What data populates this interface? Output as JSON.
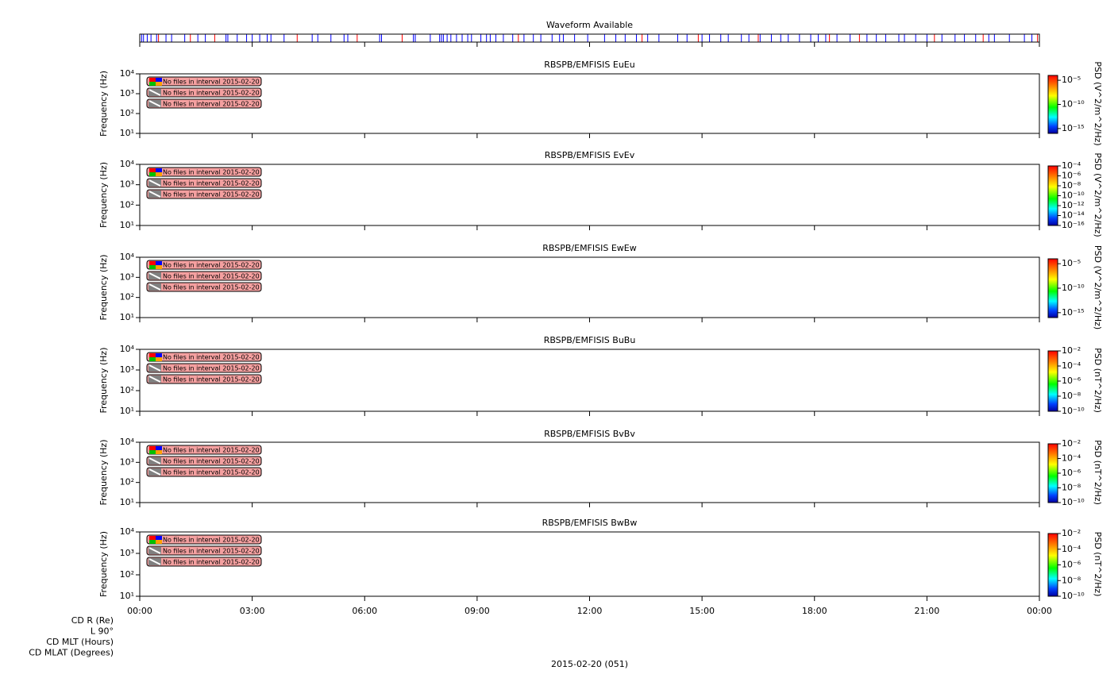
{
  "time_axis": {
    "xlim": [
      0,
      24
    ],
    "xticks": [
      {
        "value": 0,
        "label": "00:00"
      },
      {
        "value": 3,
        "label": "03:00"
      },
      {
        "value": 6,
        "label": "06:00"
      },
      {
        "value": 9,
        "label": "09:00"
      },
      {
        "value": 12,
        "label": "12:00"
      },
      {
        "value": 15,
        "label": "15:00"
      },
      {
        "value": 18,
        "label": "18:00"
      },
      {
        "value": 21,
        "label": "21:00"
      },
      {
        "value": 24,
        "label": "00:00"
      }
    ],
    "date_label": "2015-02-20 (051)",
    "ephemeris_labels": [
      "CD R (Re)",
      "L 90°",
      "CD MLT (Hours)",
      "CD MLAT (Degrees)"
    ]
  },
  "chart_data": [
    {
      "type": "timeline",
      "title": "Waveform Available",
      "xlim": [
        0,
        24
      ],
      "series": [
        {
          "color": "#0000ff",
          "x": [
            0.0,
            0.05,
            0.1,
            0.2,
            0.3,
            0.45,
            0.7,
            0.85,
            1.2,
            1.55,
            1.75,
            2.3,
            2.35,
            2.6,
            2.85,
            3.0,
            3.2,
            3.4,
            3.5,
            3.85,
            4.6,
            4.75,
            5.1,
            5.45,
            5.55,
            6.4,
            6.45,
            7.3,
            7.35,
            7.75,
            8.0,
            8.05,
            8.1,
            8.2,
            8.3,
            8.45,
            8.6,
            8.75,
            8.85,
            9.1,
            9.25,
            9.35,
            9.5,
            9.7,
            9.95,
            10.25,
            10.5,
            10.7,
            11.0,
            11.2,
            11.3,
            11.6,
            11.95,
            12.4,
            12.7,
            12.95,
            13.25,
            13.55,
            13.85,
            14.35,
            14.6,
            15.0,
            15.2,
            15.5,
            15.7,
            16.05,
            16.25,
            16.55,
            16.85,
            17.1,
            17.3,
            17.6,
            17.9,
            18.1,
            18.3,
            18.6,
            18.95,
            19.4,
            19.65,
            19.9,
            20.25,
            20.4,
            20.7,
            21.0,
            21.4,
            21.75,
            22.0,
            22.3,
            22.65,
            22.8,
            23.2,
            23.6,
            23.8
          ]
        },
        {
          "color": "#ff0000",
          "x": [
            0.5,
            1.35,
            2.0,
            4.2,
            5.8,
            7.0,
            10.1,
            13.4,
            14.9,
            16.5,
            18.4,
            19.2,
            21.2,
            22.5,
            23.95
          ]
        }
      ]
    },
    {
      "type": "spectrogram",
      "title": "RBSPB/EMFISIS  EuEu",
      "ylabel": "Frequency (Hz)",
      "ylog": true,
      "ylim": [
        10,
        10000
      ],
      "yticks": [
        {
          "value": 10,
          "label": "10¹"
        },
        {
          "value": 100,
          "label": "10²"
        },
        {
          "value": 1000,
          "label": "10³"
        },
        {
          "value": 10000,
          "label": "10⁴"
        }
      ],
      "annotations": [
        "No files in interval 2015-02-20",
        "No files in interval 2015-02-20",
        "No files in interval 2015-02-20"
      ],
      "zlog": true,
      "zlim": [
        1e-16,
        0.0001
      ],
      "zlabel": "PSD (V^2/m^2/Hz)",
      "zticks": [
        {
          "value": 1e-05,
          "label": "10⁻⁵"
        },
        {
          "value": 1e-10,
          "label": "10⁻¹⁰"
        },
        {
          "value": 1e-15,
          "label": "10⁻¹⁵"
        }
      ]
    },
    {
      "type": "spectrogram",
      "title": "RBSPB/EMFISIS  EvEv",
      "ylabel": "Frequency (Hz)",
      "ylog": true,
      "ylim": [
        10,
        10000
      ],
      "yticks": [
        {
          "value": 10,
          "label": "10¹"
        },
        {
          "value": 100,
          "label": "10²"
        },
        {
          "value": 1000,
          "label": "10³"
        },
        {
          "value": 10000,
          "label": "10⁴"
        }
      ],
      "annotations": [
        "No files in interval 2015-02-20",
        "No files in interval 2015-02-20",
        "No files in interval 2015-02-20"
      ],
      "zlog": true,
      "zlim": [
        1e-16,
        0.0001
      ],
      "zlabel": "PSD (V^2/m^2/Hz)",
      "zticks": [
        {
          "value": 0.0001,
          "label": "10⁻⁴"
        },
        {
          "value": 1e-06,
          "label": "10⁻⁶"
        },
        {
          "value": 1e-08,
          "label": "10⁻⁸"
        },
        {
          "value": 1e-10,
          "label": "10⁻¹⁰"
        },
        {
          "value": 1e-12,
          "label": "10⁻¹²"
        },
        {
          "value": 1e-14,
          "label": "10⁻¹⁴"
        },
        {
          "value": 1e-16,
          "label": "10⁻¹⁶"
        }
      ]
    },
    {
      "type": "spectrogram",
      "title": "RBSPB/EMFISIS  EwEw",
      "ylabel": "Frequency (Hz)",
      "ylog": true,
      "ylim": [
        10,
        10000
      ],
      "yticks": [
        {
          "value": 10,
          "label": "10¹"
        },
        {
          "value": 100,
          "label": "10²"
        },
        {
          "value": 1000,
          "label": "10³"
        },
        {
          "value": 10000,
          "label": "10⁴"
        }
      ],
      "annotations": [
        "No files in interval 2015-02-20",
        "No files in interval 2015-02-20",
        "No files in interval 2015-02-20"
      ],
      "zlog": true,
      "zlim": [
        1e-16,
        0.0001
      ],
      "zlabel": "PSD (V^2/m^2/Hz)",
      "zticks": [
        {
          "value": 1e-05,
          "label": "10⁻⁵"
        },
        {
          "value": 1e-10,
          "label": "10⁻¹⁰"
        },
        {
          "value": 1e-15,
          "label": "10⁻¹⁵"
        }
      ]
    },
    {
      "type": "spectrogram",
      "title": "RBSPB/EMFISIS  BuBu",
      "ylabel": "Frequency (Hz)",
      "ylog": true,
      "ylim": [
        10,
        10000
      ],
      "yticks": [
        {
          "value": 10,
          "label": "10¹"
        },
        {
          "value": 100,
          "label": "10²"
        },
        {
          "value": 1000,
          "label": "10³"
        },
        {
          "value": 10000,
          "label": "10⁴"
        }
      ],
      "annotations": [
        "No files in interval 2015-02-20",
        "No files in interval 2015-02-20",
        "No files in interval 2015-02-20"
      ],
      "zlog": true,
      "zlim": [
        1e-10,
        0.01
      ],
      "zlabel": "PSD (nT^2/Hz)",
      "zticks": [
        {
          "value": 0.01,
          "label": "10⁻²"
        },
        {
          "value": 0.0001,
          "label": "10⁻⁴"
        },
        {
          "value": 1e-06,
          "label": "10⁻⁶"
        },
        {
          "value": 1e-08,
          "label": "10⁻⁸"
        },
        {
          "value": 1e-10,
          "label": "10⁻¹⁰"
        }
      ]
    },
    {
      "type": "spectrogram",
      "title": "RBSPB/EMFISIS  BvBv",
      "ylabel": "Frequency (Hz)",
      "ylog": true,
      "ylim": [
        10,
        10000
      ],
      "yticks": [
        {
          "value": 10,
          "label": "10¹"
        },
        {
          "value": 100,
          "label": "10²"
        },
        {
          "value": 1000,
          "label": "10³"
        },
        {
          "value": 10000,
          "label": "10⁴"
        }
      ],
      "annotations": [
        "No files in interval 2015-02-20",
        "No files in interval 2015-02-20",
        "No files in interval 2015-02-20"
      ],
      "zlog": true,
      "zlim": [
        1e-10,
        0.01
      ],
      "zlabel": "PSD (nT^2/Hz)",
      "zticks": [
        {
          "value": 0.01,
          "label": "10⁻²"
        },
        {
          "value": 0.0001,
          "label": "10⁻⁴"
        },
        {
          "value": 1e-06,
          "label": "10⁻⁶"
        },
        {
          "value": 1e-08,
          "label": "10⁻⁸"
        },
        {
          "value": 1e-10,
          "label": "10⁻¹⁰"
        }
      ]
    },
    {
      "type": "spectrogram",
      "title": "RBSPB/EMFISIS  BwBw",
      "ylabel": "Frequency (Hz)",
      "ylog": true,
      "ylim": [
        10,
        10000
      ],
      "yticks": [
        {
          "value": 10,
          "label": "10¹"
        },
        {
          "value": 100,
          "label": "10²"
        },
        {
          "value": 1000,
          "label": "10³"
        },
        {
          "value": 10000,
          "label": "10⁴"
        }
      ],
      "annotations": [
        "No files in interval 2015-02-20",
        "No files in interval 2015-02-20",
        "No files in interval 2015-02-20"
      ],
      "zlog": true,
      "zlim": [
        1e-10,
        0.01
      ],
      "zlabel": "PSD (nT^2/Hz)",
      "zticks": [
        {
          "value": 0.01,
          "label": "10⁻²"
        },
        {
          "value": 0.0001,
          "label": "10⁻⁴"
        },
        {
          "value": 1e-06,
          "label": "10⁻⁶"
        },
        {
          "value": 1e-08,
          "label": "10⁻⁸"
        },
        {
          "value": 1e-10,
          "label": "10⁻¹⁰"
        }
      ]
    }
  ]
}
